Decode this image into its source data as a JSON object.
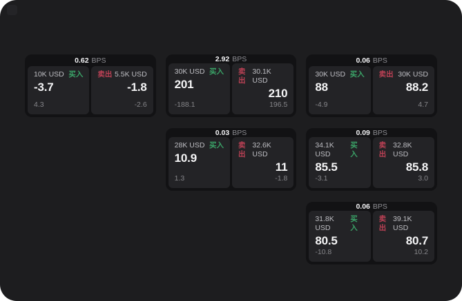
{
  "labels": {
    "bps": "BPS",
    "buy": "买入",
    "sell": "卖出"
  },
  "colors": {
    "app_background": "#1d1d1f",
    "frame_corner": "#ffffff",
    "card_background": "#121214",
    "panel_background": "#232326",
    "buy_green": "#3ba468",
    "sell_red": "#bc4155",
    "value_white": "#f5f5f6",
    "muted_gray": "#86868a"
  },
  "cards": [
    {
      "bps": "0.62",
      "buy": {
        "size": "10K USD",
        "price": "-3.7",
        "sub": "4.3"
      },
      "sell": {
        "size": "5.5K USD",
        "price": "-1.8",
        "sub": "-2.6"
      }
    },
    {
      "bps": "2.92",
      "buy": {
        "size": "30K USD",
        "price": "201",
        "sub": "-188.1"
      },
      "sell": {
        "size": "30.1K USD",
        "price": "210",
        "sub": "196.5"
      }
    },
    {
      "bps": "0.06",
      "buy": {
        "size": "30K USD",
        "price": "88",
        "sub": "-4.9"
      },
      "sell": {
        "size": "30K USD",
        "price": "88.2",
        "sub": "4.7"
      }
    },
    {
      "bps": "0.03",
      "buy": {
        "size": "28K USD",
        "price": "10.9",
        "sub": "1.3"
      },
      "sell": {
        "size": "32.6K USD",
        "price": "11",
        "sub": "-1.8"
      }
    },
    {
      "bps": "0.09",
      "buy": {
        "size": "34.1K USD",
        "price": "85.5",
        "sub": "-3.1"
      },
      "sell": {
        "size": "32.8K USD",
        "price": "85.8",
        "sub": "3.0"
      }
    },
    {
      "bps": "0.06",
      "buy": {
        "size": "31.8K USD",
        "price": "80.5",
        "sub": "-10.8"
      },
      "sell": {
        "size": "39.1K USD",
        "price": "80.7",
        "sub": "10.2"
      }
    }
  ]
}
